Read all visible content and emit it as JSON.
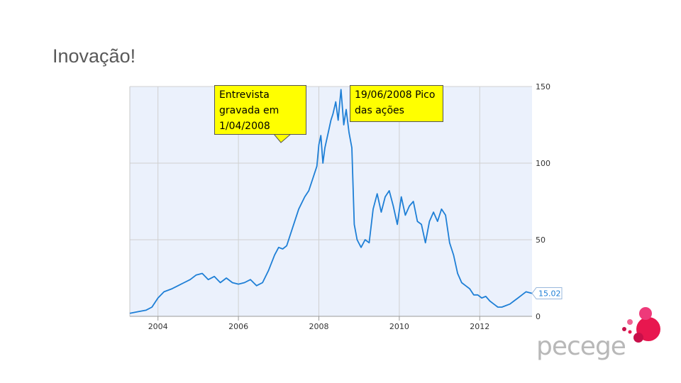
{
  "slide": {
    "title": "Inovação!"
  },
  "callouts": [
    {
      "text": "Entrevista gravada em 1/04/2008"
    },
    {
      "text": "19/06/2008 Pico das ações"
    }
  ],
  "logo": {
    "text": "pecege",
    "colors": [
      "#e8174f",
      "#ee3a7a",
      "#c8104a",
      "#f06292"
    ]
  },
  "chart_data": {
    "type": "line",
    "x_ticks": [
      2004,
      2006,
      2008,
      2010,
      2012
    ],
    "y_ticks": [
      0,
      50,
      100,
      150
    ],
    "xlim": [
      2003.3,
      2013.3
    ],
    "ylim": [
      0,
      150
    ],
    "grid": true,
    "y_axis_side": "right",
    "last_value_label": "15.02",
    "colors": {
      "line": "#1e7fd6",
      "plot_bg": "#ebf1fc",
      "grid": "#d0d0d0",
      "axis": "#999999"
    },
    "series": [
      {
        "x": [
          2003.3,
          2003.5,
          2003.7,
          2003.85,
          2004.0,
          2004.15,
          2004.35,
          2004.5,
          2004.65,
          2004.8,
          2004.95,
          2005.1,
          2005.25,
          2005.4,
          2005.55,
          2005.7,
          2005.85,
          2006.0,
          2006.15,
          2006.3,
          2006.45,
          2006.6,
          2006.75,
          2006.9,
          2007.0,
          2007.1,
          2007.2,
          2007.35,
          2007.5,
          2007.65,
          2007.75,
          2007.85,
          2007.95,
          2008.0,
          2008.05,
          2008.1,
          2008.15,
          2008.25,
          2008.3,
          2008.35,
          2008.42,
          2008.48,
          2008.55,
          2008.62,
          2008.68,
          2008.75,
          2008.82,
          2008.88,
          2008.95,
          2009.05,
          2009.15,
          2009.25,
          2009.35,
          2009.45,
          2009.55,
          2009.65,
          2009.75,
          2009.85,
          2009.95,
          2010.05,
          2010.15,
          2010.25,
          2010.35,
          2010.45,
          2010.55,
          2010.65,
          2010.75,
          2010.85,
          2010.95,
          2011.05,
          2011.15,
          2011.25,
          2011.35,
          2011.45,
          2011.55,
          2011.65,
          2011.75,
          2011.85,
          2011.95,
          2012.05,
          2012.15,
          2012.25,
          2012.35,
          2012.45,
          2012.55,
          2012.65,
          2012.75,
          2012.85,
          2012.95,
          2013.05,
          2013.15,
          2013.3
        ],
        "y": [
          2,
          3,
          4,
          6,
          12,
          16,
          18,
          20,
          22,
          24,
          27,
          28,
          24,
          26,
          22,
          25,
          22,
          21,
          22,
          24,
          20,
          22,
          30,
          40,
          45,
          44,
          46,
          58,
          70,
          78,
          82,
          90,
          98,
          112,
          118,
          100,
          110,
          122,
          128,
          132,
          140,
          128,
          148,
          125,
          135,
          120,
          110,
          60,
          50,
          45,
          50,
          48,
          70,
          80,
          68,
          78,
          82,
          72,
          60,
          78,
          66,
          72,
          75,
          62,
          60,
          48,
          62,
          68,
          62,
          70,
          66,
          48,
          40,
          28,
          22,
          20,
          18,
          14,
          14,
          12,
          13,
          10,
          8,
          6,
          6,
          7,
          8,
          10,
          12,
          14,
          16,
          15.02
        ]
      }
    ]
  }
}
